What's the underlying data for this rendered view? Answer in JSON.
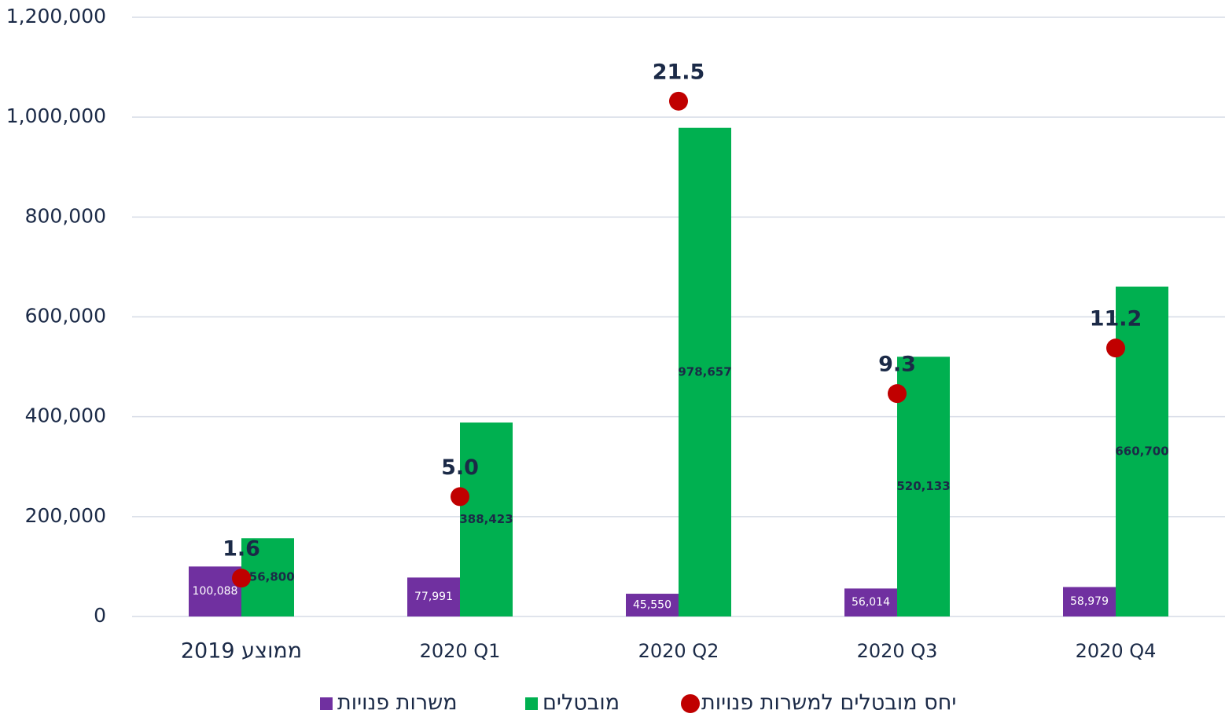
{
  "chart_data": {
    "type": "bar",
    "categories": [
      "ממוצע 2019",
      "2020 Q1",
      "2020 Q2",
      "2020 Q3",
      "2020 Q4"
    ],
    "series": [
      {
        "name": "משרות פנויות",
        "color": "#7030a0",
        "values": [
          100088,
          77991,
          45550,
          56014,
          58979
        ],
        "value_labels": [
          "100,088",
          "77,991",
          "45,550",
          "56,014",
          "58,979"
        ]
      },
      {
        "name": "מובטלים",
        "color": "#00b050",
        "values": [
          156800,
          388423,
          978657,
          520133,
          660700
        ],
        "value_labels": [
          "156,800",
          "388,423",
          "978,657",
          "520,133",
          "660,700"
        ]
      },
      {
        "name": "יחס מובטלים למשרות פנויות",
        "color": "#c00000",
        "type": "scatter",
        "axis": "y2",
        "values": [
          1.6,
          5.0,
          21.5,
          9.3,
          11.2
        ],
        "value_labels": [
          "1.6",
          "5.0",
          "21.5",
          "9.3",
          "11.2"
        ]
      }
    ],
    "ylim": [
      0,
      1200000
    ],
    "yticks": [
      0,
      {
        "value": 200000,
        "label": "200,000"
      },
      {
        "value": 400000,
        "label": "400,000"
      },
      {
        "value": 600000,
        "label": "600,000"
      },
      {
        "value": 800000,
        "label": "800,000"
      },
      {
        "value": 1000000,
        "label": "1,000,000"
      },
      {
        "value": 1200000,
        "label": "1,200,000"
      }
    ],
    "y2lim": [
      0,
      25
    ],
    "grid": true,
    "legend": "bottom"
  }
}
